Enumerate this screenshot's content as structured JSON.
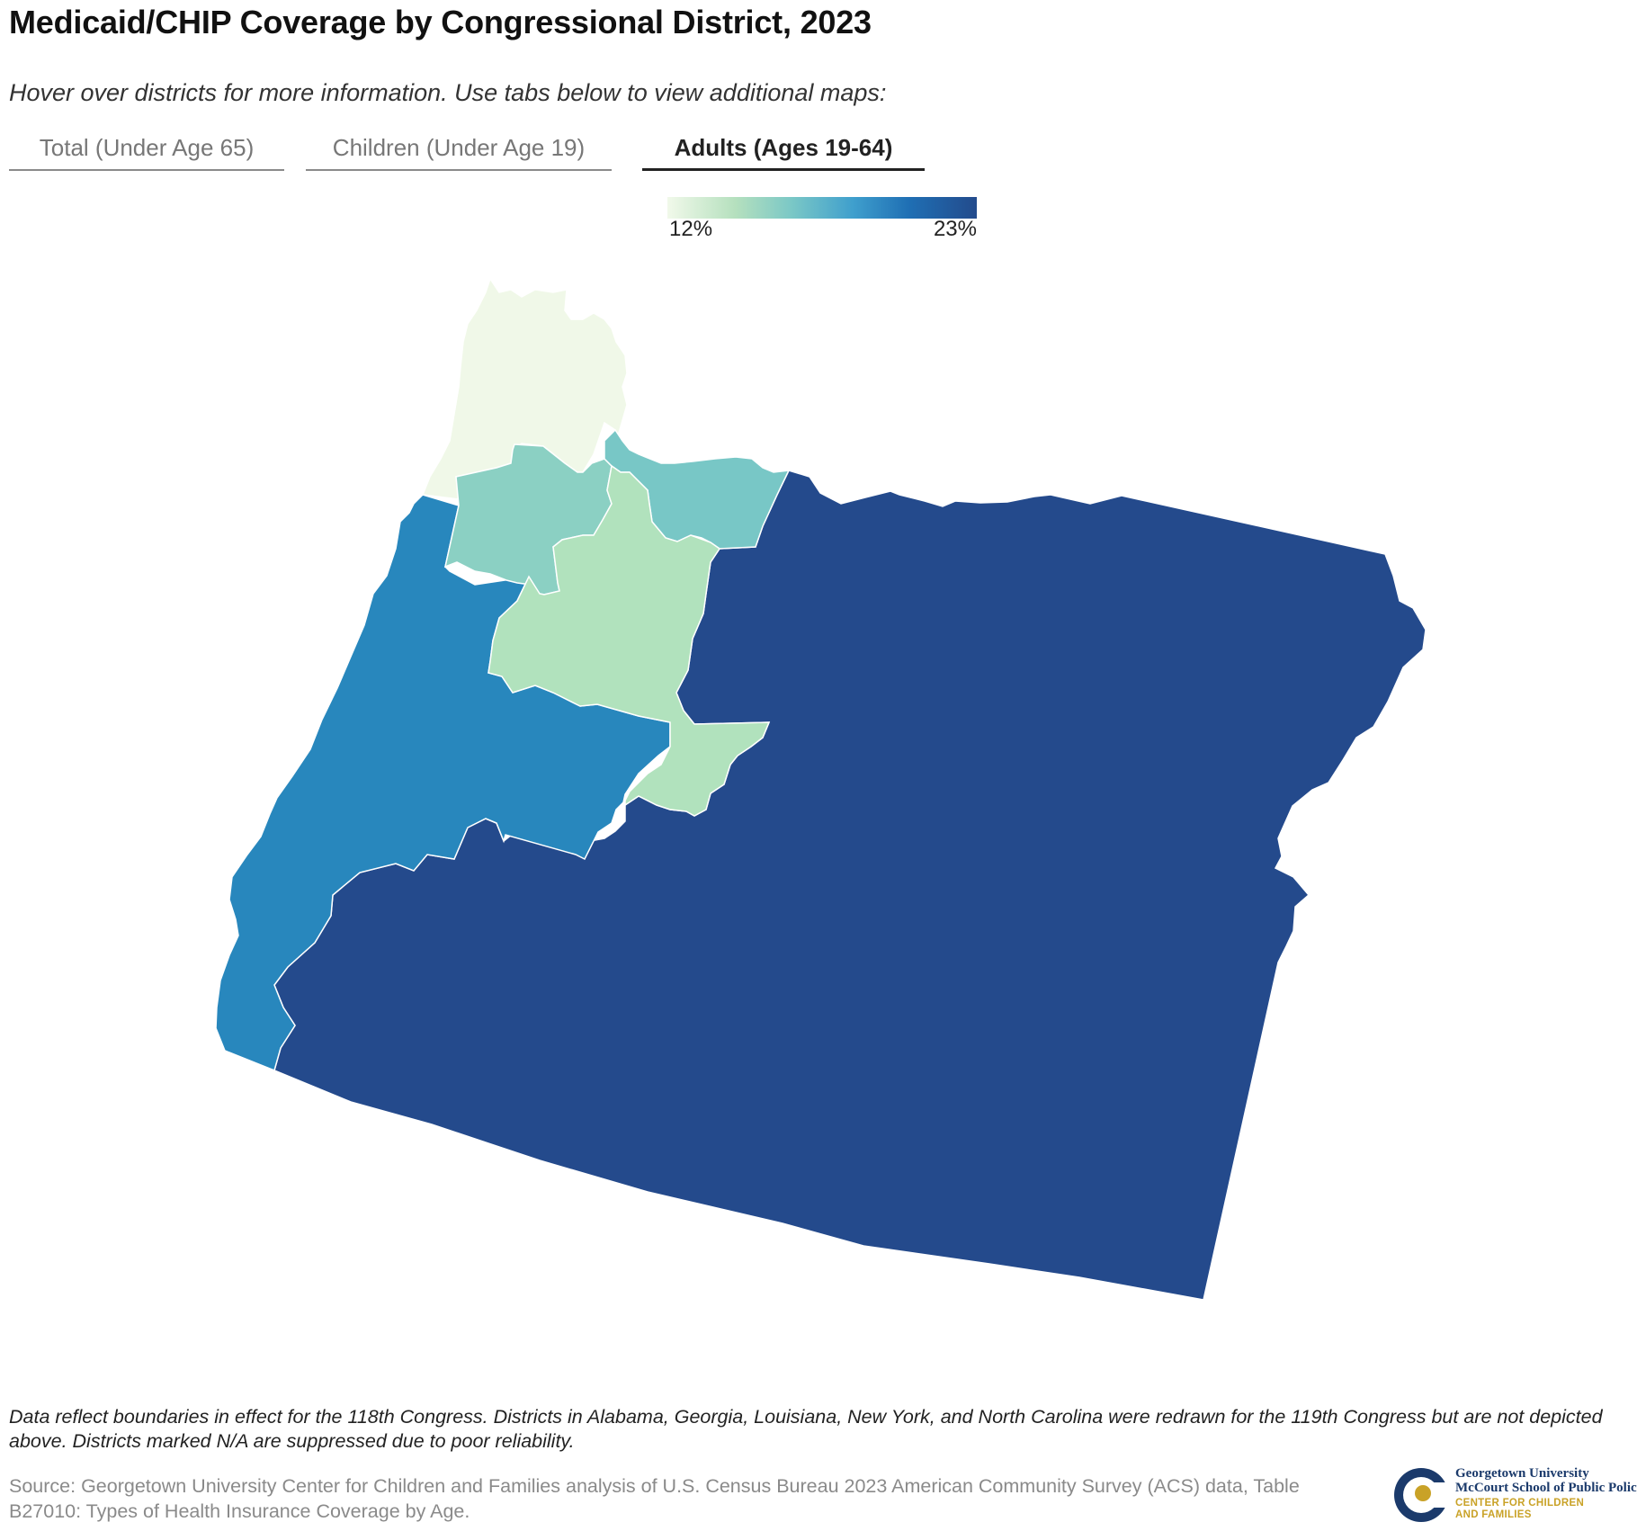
{
  "title": "Medicaid/CHIP Coverage by Congressional District, 2023",
  "subtitle": "Hover over districts for more information. Use tabs below to view additional maps:",
  "tabs": [
    {
      "label": "Total (Under Age 65)",
      "active": false
    },
    {
      "label": "Children (Under Age 19)",
      "active": false
    },
    {
      "label": "Adults (Ages 19-64)",
      "active": true
    }
  ],
  "legend": {
    "min_label": "12%",
    "max_label": "23%",
    "min_color": "#f1f9ea",
    "max_color": "#234b8c"
  },
  "map": {
    "districts": [
      {
        "id": "district-1",
        "fill": "#f0f8e8"
      },
      {
        "id": "district-2",
        "fill": "#244a8c"
      },
      {
        "id": "district-3",
        "fill": "#78c7c6"
      },
      {
        "id": "district-4",
        "fill": "#2887bd"
      },
      {
        "id": "district-5",
        "fill": "#b1e2bd"
      },
      {
        "id": "district-6",
        "fill": "#8bd0c3"
      }
    ]
  },
  "footnote": "Data reflect boundaries in effect for the 118th Congress. Districts in Alabama, Georgia, Louisiana, New York, and North Carolina were redrawn for the 119th Congress but are not depicted above. Districts marked N/A are suppressed due to poor reliability.",
  "source": "Source: Georgetown University Center for Children and Families analysis of U.S. Census Bureau 2023 American Community Survey (ACS) data, Table B27010: Types of Health Insurance Coverage by Age.",
  "logo": {
    "line1": "Georgetown University",
    "line2": "McCourt School of Public Policy",
    "line3": "CENTER FOR CHILDREN",
    "line4": "AND FAMILIES"
  }
}
